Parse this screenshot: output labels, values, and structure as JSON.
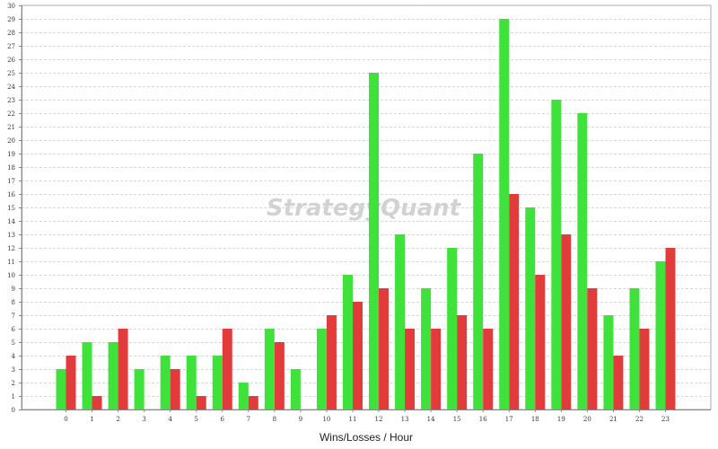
{
  "chart_data": {
    "type": "bar",
    "categories": [
      "0",
      "1",
      "2",
      "3",
      "4",
      "5",
      "6",
      "7",
      "8",
      "9",
      "10",
      "11",
      "12",
      "13",
      "14",
      "15",
      "16",
      "17",
      "18",
      "19",
      "20",
      "21",
      "22",
      "23"
    ],
    "series": [
      {
        "values": [
          3,
          5,
          5,
          3,
          4,
          4,
          4,
          2,
          6,
          3,
          6,
          10,
          25,
          13,
          9,
          12,
          19,
          29,
          15,
          23,
          22,
          7,
          9,
          11
        ],
        "color": "#3fe23b"
      },
      {
        "values": [
          4,
          1,
          6,
          0,
          3,
          1,
          6,
          1,
          5,
          0,
          7,
          8,
          9,
          6,
          6,
          7,
          6,
          16,
          10,
          13,
          9,
          4,
          6,
          12
        ],
        "color": "#e23b3b"
      }
    ],
    "title": "",
    "xlabel": "Wins/Losses / Hour",
    "ylabel": "",
    "ylim": [
      0,
      30
    ],
    "yticks": [
      0,
      1,
      2,
      3,
      4,
      5,
      6,
      7,
      8,
      9,
      10,
      11,
      12,
      13,
      14,
      15,
      16,
      17,
      18,
      19,
      20,
      21,
      22,
      23,
      24,
      25,
      26,
      27,
      28,
      29,
      30
    ],
    "grid": true,
    "legend": "none",
    "watermark": "StrategyQuant"
  }
}
